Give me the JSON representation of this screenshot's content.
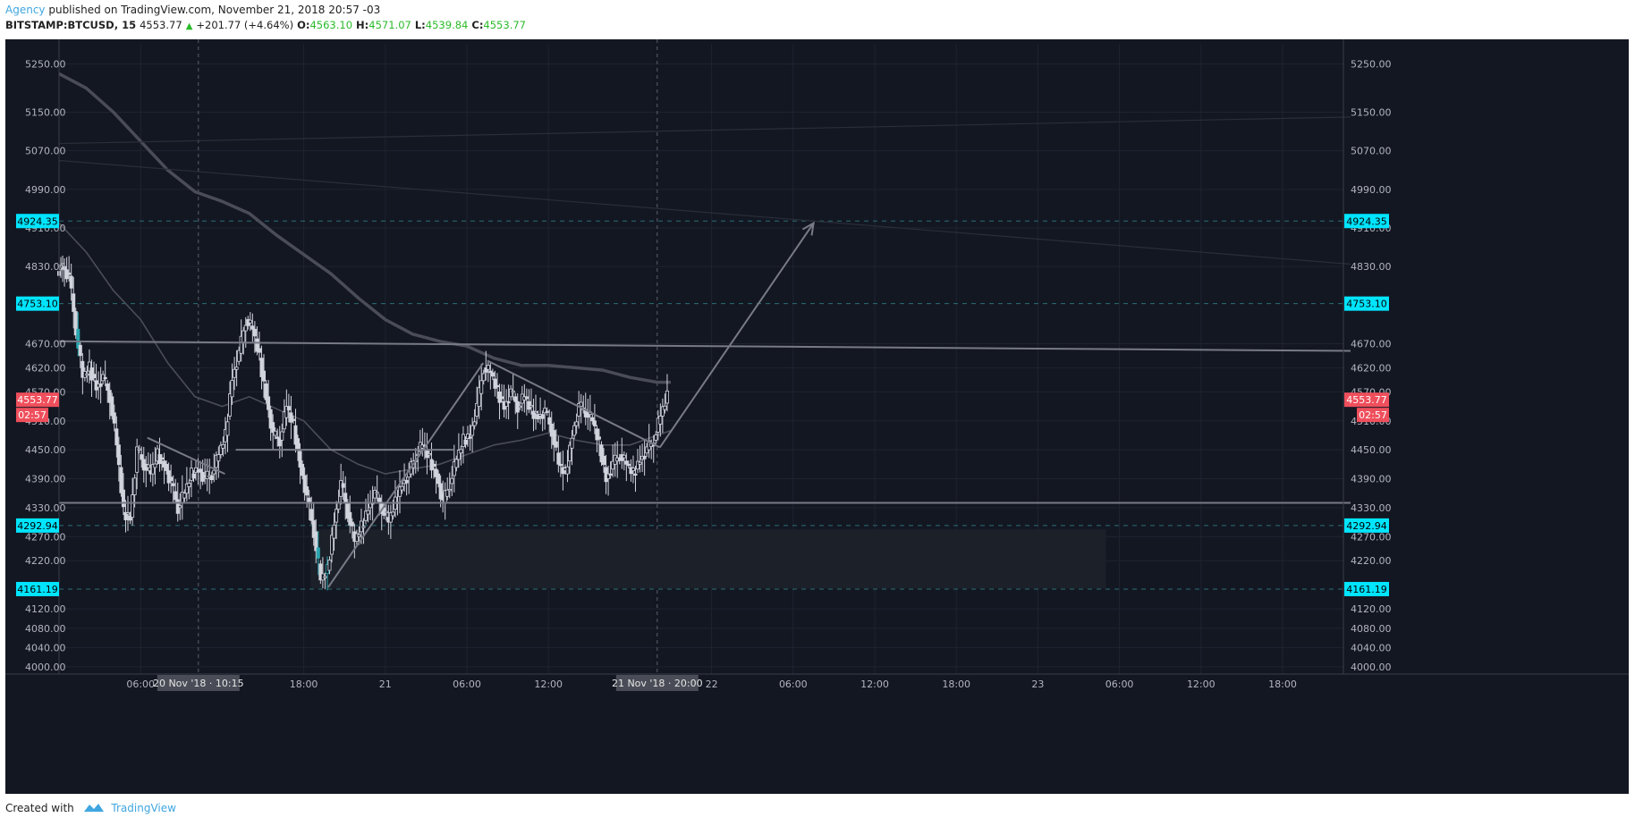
{
  "header": {
    "author": "Agency",
    "published_text": "published on TradingView.com, November 21, 2018 20:57 -03",
    "symbol": "BITSTAMP:BTCUSD, 15",
    "last_price": "4553.77",
    "change": "+201.77 (+4.64%)",
    "open_label": "O:",
    "open": "4563.10",
    "high_label": "H:",
    "high": "4571.07",
    "low_label": "L:",
    "low": "4539.84",
    "close_label": "C:",
    "close": "4553.77"
  },
  "footer": {
    "created_with": "Created with",
    "brand": "TradingView"
  },
  "colors": {
    "background": "#131722",
    "grid": "#1f2330",
    "axis_text": "#b2b5be",
    "candle": "#d1d4dc",
    "candle_accent": "#2ba7b0",
    "drawing": "#787b86",
    "level_label": "#00e5ff",
    "price_label": "#ef4f5c"
  },
  "chart_data": {
    "type": "candlestick",
    "symbol": "BITSTAMP:BTCUSD",
    "timeframe": "15",
    "ylim": [
      3985,
      5290
    ],
    "y_ticks": [
      "5250.00",
      "5150.00",
      "5070.00",
      "4990.00",
      "4910.00",
      "4830.00",
      "4670.00",
      "4620.00",
      "4570.00",
      "4510.00",
      "4450.00",
      "4390.00",
      "4330.00",
      "4270.00",
      "4220.00",
      "4120.00",
      "4080.00",
      "4040.00",
      "4000.00"
    ],
    "x_ticks": [
      {
        "t": 6,
        "label": "06:00"
      },
      {
        "t": 18,
        "label": "18:00"
      },
      {
        "t": 24,
        "label": "21"
      },
      {
        "t": 30,
        "label": "06:00"
      },
      {
        "t": 36,
        "label": "12:00"
      },
      {
        "t": 48,
        "label": "22"
      },
      {
        "t": 54,
        "label": "06:00"
      },
      {
        "t": 60,
        "label": "12:00"
      },
      {
        "t": 66,
        "label": "18:00"
      },
      {
        "t": 72,
        "label": "23"
      },
      {
        "t": 78,
        "label": "06:00"
      },
      {
        "t": 84,
        "label": "12:00"
      },
      {
        "t": 90,
        "label": "18:00"
      }
    ],
    "time_labels": [
      {
        "t": 10.25,
        "label": "20 Nov '18 · 10:15"
      },
      {
        "t": 44,
        "label": "21 Nov '18 · 20:00"
      }
    ],
    "levels": [
      {
        "value": 4924.35,
        "label": "4924.35"
      },
      {
        "value": 4753.1,
        "label": "4753.10"
      },
      {
        "value": 4292.94,
        "label": "4292.94"
      },
      {
        "value": 4161.19,
        "label": "4161.19"
      }
    ],
    "last_price": {
      "value": 4553.77,
      "label": "4553.77",
      "countdown": "02:57"
    },
    "ohlc_last": {
      "open": 4563.1,
      "high": 4571.07,
      "low": 4539.84,
      "close": 4553.77
    },
    "price_path": [
      [
        0,
        4820
      ],
      [
        0.4,
        4830
      ],
      [
        0.9,
        4810
      ],
      [
        1.4,
        4700
      ],
      [
        1.9,
        4600
      ],
      [
        2.4,
        4620
      ],
      [
        2.9,
        4580
      ],
      [
        3.4,
        4600
      ],
      [
        3.9,
        4560
      ],
      [
        4.4,
        4460
      ],
      [
        4.9,
        4320
      ],
      [
        5.4,
        4310
      ],
      [
        5.9,
        4450
      ],
      [
        6.4,
        4420
      ],
      [
        6.9,
        4400
      ],
      [
        7.4,
        4440
      ],
      [
        7.9,
        4420
      ],
      [
        8.4,
        4380
      ],
      [
        8.9,
        4330
      ],
      [
        9.4,
        4360
      ],
      [
        9.9,
        4400
      ],
      [
        10.4,
        4410
      ],
      [
        10.9,
        4390
      ],
      [
        11.4,
        4400
      ],
      [
        11.9,
        4440
      ],
      [
        12.4,
        4480
      ],
      [
        12.9,
        4600
      ],
      [
        13.4,
        4650
      ],
      [
        13.9,
        4720
      ],
      [
        14.4,
        4700
      ],
      [
        14.9,
        4640
      ],
      [
        15.4,
        4560
      ],
      [
        15.9,
        4480
      ],
      [
        16.4,
        4470
      ],
      [
        16.9,
        4540
      ],
      [
        17.4,
        4500
      ],
      [
        17.9,
        4420
      ],
      [
        18.4,
        4350
      ],
      [
        18.9,
        4280
      ],
      [
        19.4,
        4180
      ],
      [
        19.9,
        4200
      ],
      [
        20.4,
        4300
      ],
      [
        20.9,
        4380
      ],
      [
        21.4,
        4320
      ],
      [
        21.9,
        4260
      ],
      [
        22.4,
        4290
      ],
      [
        22.9,
        4330
      ],
      [
        23.4,
        4360
      ],
      [
        23.9,
        4330
      ],
      [
        24.4,
        4300
      ],
      [
        24.9,
        4340
      ],
      [
        25.4,
        4380
      ],
      [
        25.9,
        4400
      ],
      [
        26.4,
        4440
      ],
      [
        26.9,
        4460
      ],
      [
        27.4,
        4430
      ],
      [
        27.9,
        4400
      ],
      [
        28.4,
        4340
      ],
      [
        28.9,
        4380
      ],
      [
        29.4,
        4430
      ],
      [
        29.9,
        4470
      ],
      [
        30.4,
        4480
      ],
      [
        30.9,
        4540
      ],
      [
        31.4,
        4620
      ],
      [
        31.9,
        4610
      ],
      [
        32.4,
        4570
      ],
      [
        32.9,
        4540
      ],
      [
        33.4,
        4570
      ],
      [
        33.9,
        4540
      ],
      [
        34.4,
        4560
      ],
      [
        34.9,
        4530
      ],
      [
        35.4,
        4520
      ],
      [
        35.9,
        4530
      ],
      [
        36.4,
        4490
      ],
      [
        36.9,
        4420
      ],
      [
        37.4,
        4400
      ],
      [
        37.9,
        4480
      ],
      [
        38.4,
        4540
      ],
      [
        38.9,
        4530
      ],
      [
        39.4,
        4510
      ],
      [
        39.9,
        4460
      ],
      [
        40.4,
        4390
      ],
      [
        40.9,
        4420
      ],
      [
        41.4,
        4440
      ],
      [
        41.9,
        4420
      ],
      [
        42.4,
        4400
      ],
      [
        42.9,
        4430
      ],
      [
        43.4,
        4450
      ],
      [
        43.9,
        4470
      ],
      [
        44.4,
        4520
      ],
      [
        44.9,
        4560
      ]
    ],
    "moving_averages": [
      {
        "points": [
          [
            0,
            5230
          ],
          [
            2,
            5200
          ],
          [
            4,
            5150
          ],
          [
            6,
            5090
          ],
          [
            8,
            5030
          ],
          [
            10,
            4985
          ],
          [
            12,
            4965
          ],
          [
            14,
            4940
          ],
          [
            16,
            4895
          ],
          [
            18,
            4855
          ],
          [
            20,
            4815
          ],
          [
            22,
            4765
          ],
          [
            24,
            4720
          ],
          [
            26,
            4690
          ],
          [
            28,
            4675
          ],
          [
            30,
            4665
          ],
          [
            32,
            4640
          ],
          [
            34,
            4625
          ],
          [
            36,
            4625
          ],
          [
            38,
            4620
          ],
          [
            40,
            4615
          ],
          [
            42,
            4600
          ],
          [
            44,
            4590
          ],
          [
            45,
            4590
          ]
        ]
      },
      {
        "points": [
          [
            0,
            4920
          ],
          [
            2,
            4860
          ],
          [
            4,
            4780
          ],
          [
            6,
            4720
          ],
          [
            8,
            4630
          ],
          [
            10,
            4560
          ],
          [
            12,
            4540
          ],
          [
            14,
            4560
          ],
          [
            16,
            4535
          ],
          [
            18,
            4510
          ],
          [
            20,
            4450
          ],
          [
            22,
            4420
          ],
          [
            24,
            4400
          ],
          [
            26,
            4410
          ],
          [
            28,
            4420
          ],
          [
            30,
            4440
          ],
          [
            32,
            4460
          ],
          [
            34,
            4470
          ],
          [
            36,
            4485
          ],
          [
            38,
            4470
          ],
          [
            40,
            4460
          ],
          [
            42,
            4460
          ],
          [
            44,
            4480
          ],
          [
            45,
            4490
          ]
        ]
      },
      {
        "points": [
          [
            0,
            5050
          ],
          [
            95,
            4835
          ]
        ]
      },
      {
        "points": [
          [
            0,
            5085
          ],
          [
            95,
            5140
          ]
        ]
      }
    ],
    "drawings": [
      {
        "kind": "line",
        "points": [
          [
            0,
            4675
          ],
          [
            95,
            4655
          ]
        ]
      },
      {
        "kind": "line",
        "points": [
          [
            0,
            4340
          ],
          [
            95,
            4340
          ]
        ]
      },
      {
        "kind": "line",
        "points": [
          [
            13,
            4450
          ],
          [
            29,
            4450
          ]
        ]
      },
      {
        "kind": "line",
        "points": [
          [
            6.5,
            4475
          ],
          [
            12.2,
            4400
          ]
        ]
      },
      {
        "kind": "line",
        "points": [
          [
            19.8,
            4165
          ],
          [
            31.2,
            4630
          ]
        ]
      },
      {
        "kind": "line",
        "points": [
          [
            31.5,
            4635
          ],
          [
            44.2,
            4455
          ]
        ]
      },
      {
        "kind": "arrow",
        "points": [
          [
            44.2,
            4455
          ],
          [
            55.5,
            4920
          ]
        ]
      },
      {
        "kind": "rect",
        "t0": 18.5,
        "t1": 77.0,
        "top": 4285,
        "bottom": 4162
      }
    ]
  }
}
